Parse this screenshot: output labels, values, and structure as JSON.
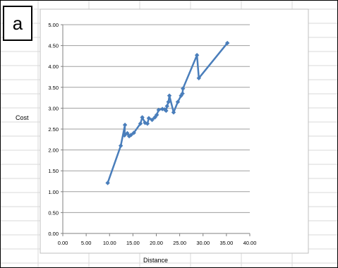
{
  "panel_label": "a",
  "chart_data": {
    "type": "line",
    "title": "",
    "xlabel": "Distance",
    "ylabel": "Cost",
    "xlim": [
      0,
      40
    ],
    "ylim": [
      0,
      5
    ],
    "xticks": [
      "0.00",
      "5.00",
      "10.00",
      "15.00",
      "20.00",
      "25.00",
      "30.00",
      "35.00",
      "40.00"
    ],
    "yticks": [
      "0.00",
      "0.50",
      "1.00",
      "1.50",
      "2.00",
      "2.50",
      "3.00",
      "3.50",
      "4.00",
      "4.50",
      "5.00"
    ],
    "grid": "horizontal",
    "legend": "none",
    "series": [
      {
        "color": "#4a7ebb",
        "x": [
          9.6,
          12.4,
          13.3,
          13.2,
          13.8,
          14.2,
          14.6,
          15.2,
          16.6,
          17.0,
          17.6,
          18.1,
          18.4,
          19.1,
          19.7,
          20.1,
          20.5,
          21.3,
          21.8,
          22.1,
          22.3,
          22.6,
          22.8,
          23.7,
          24.6,
          25.3,
          25.6,
          25.7,
          28.7,
          29.1,
          35.2
        ],
        "y": [
          1.21,
          2.1,
          2.6,
          2.35,
          2.4,
          2.33,
          2.36,
          2.41,
          2.63,
          2.78,
          2.65,
          2.63,
          2.76,
          2.72,
          2.78,
          2.84,
          2.96,
          2.98,
          2.97,
          2.94,
          3.05,
          3.15,
          3.3,
          2.9,
          3.15,
          3.3,
          3.35,
          3.47,
          4.27,
          3.72,
          4.56
        ]
      }
    ]
  }
}
